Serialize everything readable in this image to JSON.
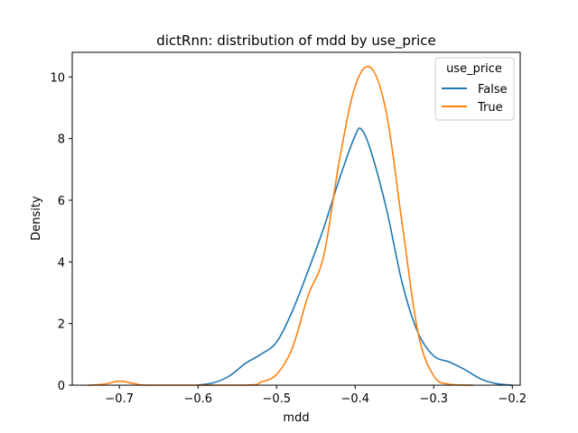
{
  "chart_data": {
    "type": "line",
    "title": "dictRnn: distribution of mdd by use_price",
    "xlabel": "mdd",
    "ylabel": "Density",
    "xlim": [
      -0.76,
      -0.19
    ],
    "ylim": [
      0,
      10.8
    ],
    "xticks": [
      -0.7,
      -0.6,
      -0.5,
      -0.4,
      -0.3,
      -0.2
    ],
    "xtick_labels": [
      "−0.7",
      "−0.6",
      "−0.5",
      "−0.4",
      "−0.3",
      "−0.2"
    ],
    "yticks": [
      0,
      2,
      4,
      6,
      8,
      10
    ],
    "ytick_labels": [
      "0",
      "2",
      "4",
      "6",
      "8",
      "10"
    ],
    "grid": false,
    "legend": {
      "title": "use_price",
      "placement": "top-right"
    },
    "series": [
      {
        "name": "False",
        "color": "#1f77b4",
        "points": [
          [
            -0.6,
            0.0
          ],
          [
            -0.58,
            0.08
          ],
          [
            -0.56,
            0.3
          ],
          [
            -0.54,
            0.7
          ],
          [
            -0.52,
            1.0
          ],
          [
            -0.5,
            1.4
          ],
          [
            -0.48,
            2.4
          ],
          [
            -0.46,
            3.7
          ],
          [
            -0.44,
            5.1
          ],
          [
            -0.42,
            6.7
          ],
          [
            -0.4,
            8.1
          ],
          [
            -0.392,
            8.3
          ],
          [
            -0.38,
            7.6
          ],
          [
            -0.36,
            5.7
          ],
          [
            -0.34,
            3.3
          ],
          [
            -0.32,
            1.7
          ],
          [
            -0.3,
            0.95
          ],
          [
            -0.28,
            0.75
          ],
          [
            -0.26,
            0.5
          ],
          [
            -0.24,
            0.2
          ],
          [
            -0.22,
            0.05
          ],
          [
            -0.2,
            0.0
          ]
        ]
      },
      {
        "name": "True",
        "color": "#ff7f0e",
        "points": [
          [
            -0.74,
            0.0
          ],
          [
            -0.72,
            0.03
          ],
          [
            -0.7,
            0.13
          ],
          [
            -0.68,
            0.05
          ],
          [
            -0.66,
            0.0
          ],
          [
            -0.54,
            0.0
          ],
          [
            -0.52,
            0.1
          ],
          [
            -0.5,
            0.35
          ],
          [
            -0.48,
            1.2
          ],
          [
            -0.46,
            2.9
          ],
          [
            -0.44,
            4.2
          ],
          [
            -0.42,
            7.3
          ],
          [
            -0.4,
            9.7
          ],
          [
            -0.38,
            10.3
          ],
          [
            -0.36,
            8.8
          ],
          [
            -0.34,
            5.2
          ],
          [
            -0.32,
            1.7
          ],
          [
            -0.3,
            0.3
          ],
          [
            -0.28,
            0.03
          ],
          [
            -0.25,
            0.0
          ]
        ]
      }
    ]
  }
}
